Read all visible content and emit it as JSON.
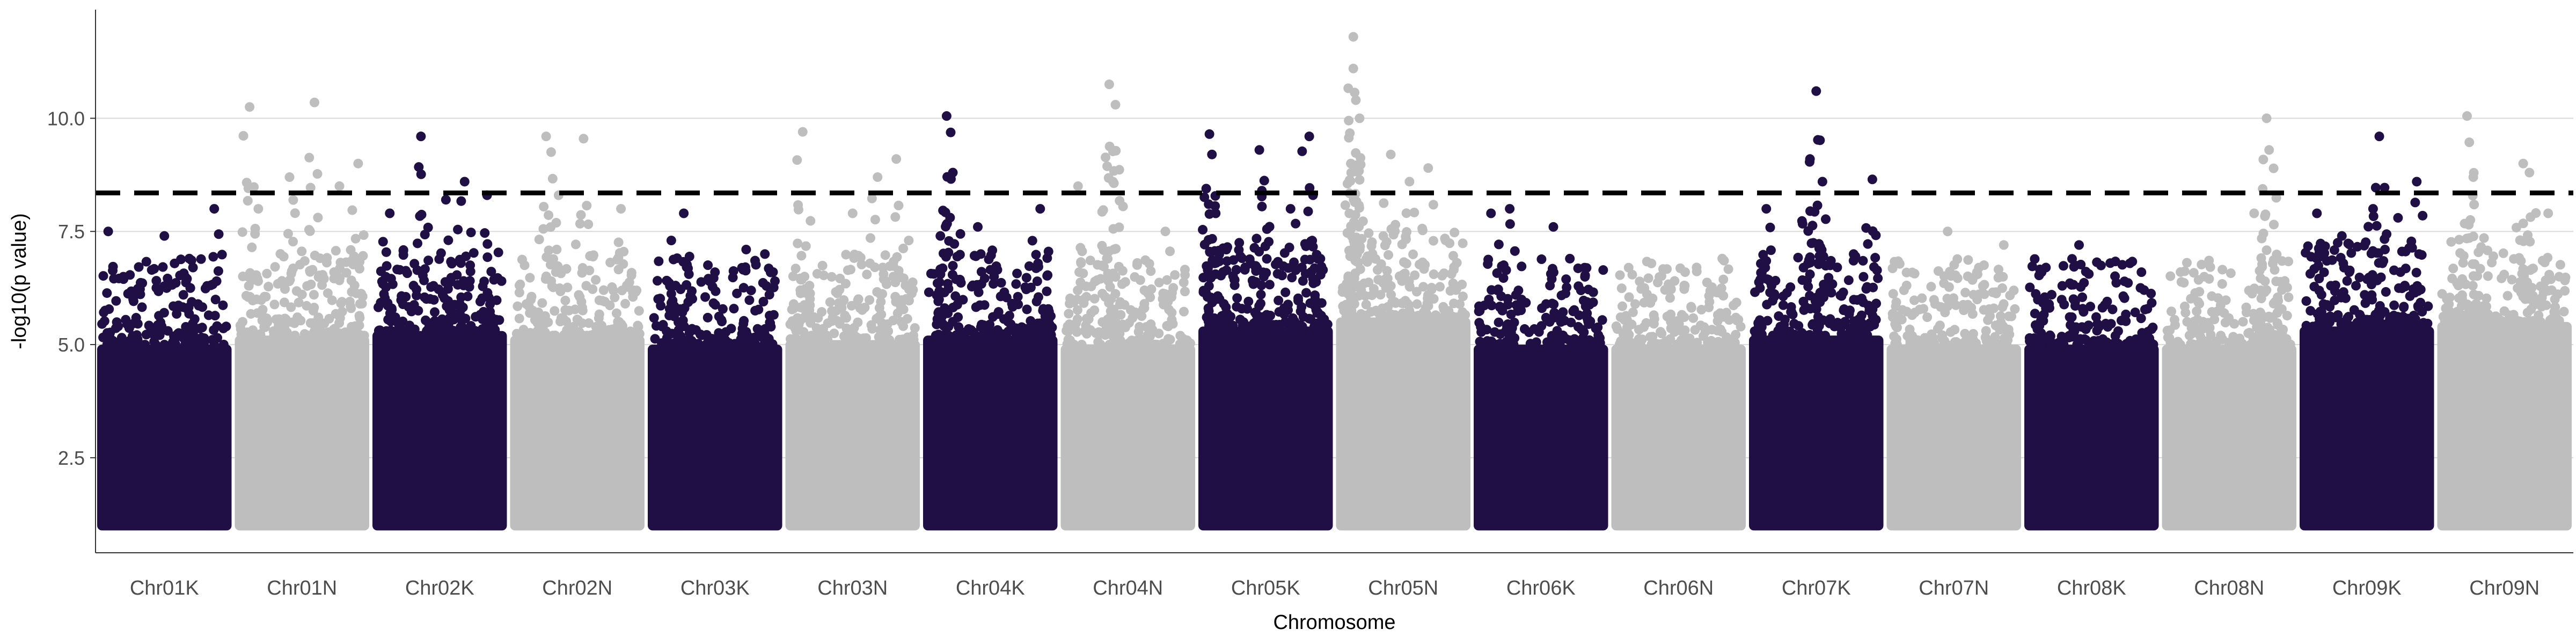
{
  "chart_data": {
    "type": "scatter",
    "title": "",
    "xlabel": "Chromosome",
    "ylabel": "-log10(p value)",
    "y_ticks": [
      2.5,
      5.0,
      7.5,
      10.0
    ],
    "y_tick_labels": [
      "2.5",
      "5.0",
      "7.5",
      "10.0"
    ],
    "ylim": [
      0.4,
      12.4
    ],
    "significance_threshold": 8.35,
    "grid": "horizontal major lines",
    "legend": "none",
    "colors": {
      "dark": "#1f0f45",
      "light": "#bebebe",
      "threshold": "#000000",
      "grid": "#d9d9d9"
    },
    "categories": [
      "Chr01K",
      "Chr01N",
      "Chr02K",
      "Chr02N",
      "Chr03K",
      "Chr03N",
      "Chr04K",
      "Chr04N",
      "Chr05K",
      "Chr05N",
      "Chr06K",
      "Chr06N",
      "Chr07K",
      "Chr07N",
      "Chr08K",
      "Chr08N",
      "Chr09K",
      "Chr09N"
    ],
    "series": [
      {
        "chrom": "Chr01K",
        "color": "dark",
        "body_top": 5.0,
        "peaks": [
          [
            0.05,
            7.5
          ],
          [
            0.25,
            6.0
          ],
          [
            0.5,
            7.4
          ],
          [
            0.7,
            6.9
          ],
          [
            0.9,
            8.0
          ]
        ]
      },
      {
        "chrom": "Chr01N",
        "color": "light",
        "body_top": 5.2,
        "peaks": [
          [
            0.08,
            10.25
          ],
          [
            0.15,
            8.0
          ],
          [
            0.4,
            8.7
          ],
          [
            0.6,
            10.35
          ],
          [
            0.8,
            8.5
          ],
          [
            0.95,
            9.0
          ]
        ]
      },
      {
        "chrom": "Chr02K",
        "color": "dark",
        "body_top": 5.3,
        "peaks": [
          [
            0.1,
            7.9
          ],
          [
            0.35,
            9.6
          ],
          [
            0.55,
            8.2
          ],
          [
            0.7,
            8.6
          ],
          [
            0.88,
            8.3
          ]
        ]
      },
      {
        "chrom": "Chr02N",
        "color": "light",
        "body_top": 5.2,
        "peaks": [
          [
            0.25,
            9.6
          ],
          [
            0.55,
            9.55
          ],
          [
            0.35,
            8.3
          ],
          [
            0.85,
            8.0
          ]
        ]
      },
      {
        "chrom": "Chr03K",
        "color": "dark",
        "body_top": 5.0,
        "peaks": [
          [
            0.15,
            7.3
          ],
          [
            0.25,
            7.9
          ],
          [
            0.5,
            6.6
          ],
          [
            0.75,
            7.1
          ],
          [
            0.9,
            7.0
          ]
        ]
      },
      {
        "chrom": "Chr03N",
        "color": "light",
        "body_top": 5.1,
        "peaks": [
          [
            0.1,
            9.7
          ],
          [
            0.5,
            7.9
          ],
          [
            0.7,
            8.7
          ],
          [
            0.85,
            9.1
          ],
          [
            0.95,
            7.3
          ]
        ]
      },
      {
        "chrom": "Chr04K",
        "color": "dark",
        "body_top": 5.2,
        "peaks": [
          [
            0.1,
            7.4
          ],
          [
            0.15,
            10.05
          ],
          [
            0.2,
            8.8
          ],
          [
            0.4,
            7.6
          ],
          [
            0.9,
            8.0
          ]
        ]
      },
      {
        "chrom": "Chr04N",
        "color": "light",
        "body_top": 5.0,
        "peaks": [
          [
            0.1,
            8.5
          ],
          [
            0.35,
            10.75
          ],
          [
            0.4,
            10.3
          ],
          [
            0.38,
            8.6
          ],
          [
            0.8,
            7.5
          ]
        ]
      },
      {
        "chrom": "Chr05K",
        "color": "dark",
        "body_top": 5.4,
        "peaks": [
          [
            0.05,
            9.65
          ],
          [
            0.07,
            9.2
          ],
          [
            0.1,
            7.9
          ],
          [
            0.45,
            9.3
          ],
          [
            0.47,
            8.4
          ],
          [
            0.7,
            8.0
          ],
          [
            0.85,
            9.6
          ],
          [
            0.88,
            8.3
          ]
        ]
      },
      {
        "chrom": "Chr05N",
        "color": "light",
        "body_top": 5.6,
        "peaks": [
          [
            0.1,
            11.8
          ],
          [
            0.1,
            11.1
          ],
          [
            0.12,
            10.4
          ],
          [
            0.15,
            10.0
          ],
          [
            0.08,
            9.0
          ],
          [
            0.4,
            9.2
          ],
          [
            0.55,
            8.6
          ],
          [
            0.7,
            8.9
          ]
        ]
      },
      {
        "chrom": "Chr06K",
        "color": "dark",
        "body_top": 5.0,
        "peaks": [
          [
            0.1,
            7.9
          ],
          [
            0.25,
            8.0
          ],
          [
            0.6,
            7.6
          ],
          [
            0.85,
            6.7
          ]
        ]
      },
      {
        "chrom": "Chr06N",
        "color": "light",
        "body_top": 5.0,
        "peaks": [
          [
            0.1,
            6.7
          ],
          [
            0.55,
            6.3
          ],
          [
            0.85,
            6.9
          ]
        ]
      },
      {
        "chrom": "Chr07K",
        "color": "dark",
        "body_top": 5.2,
        "peaks": [
          [
            0.1,
            8.0
          ],
          [
            0.5,
            10.6
          ],
          [
            0.45,
            9.1
          ],
          [
            0.55,
            8.6
          ],
          [
            0.8,
            7.0
          ],
          [
            0.95,
            8.65
          ]
        ]
      },
      {
        "chrom": "Chr07N",
        "color": "light",
        "body_top": 5.0,
        "peaks": [
          [
            0.1,
            6.2
          ],
          [
            0.45,
            7.5
          ],
          [
            0.7,
            6.7
          ],
          [
            0.9,
            7.2
          ]
        ]
      },
      {
        "chrom": "Chr08K",
        "color": "dark",
        "body_top": 5.0,
        "peaks": [
          [
            0.1,
            6.6
          ],
          [
            0.4,
            7.2
          ],
          [
            0.65,
            6.8
          ],
          [
            0.9,
            6.6
          ]
        ]
      },
      {
        "chrom": "Chr08N",
        "color": "light",
        "body_top": 5.0,
        "peaks": [
          [
            0.3,
            6.5
          ],
          [
            0.7,
            7.9
          ],
          [
            0.8,
            10.0
          ],
          [
            0.82,
            9.3
          ]
        ]
      },
      {
        "chrom": "Chr09K",
        "color": "dark",
        "body_top": 5.4,
        "peaks": [
          [
            0.1,
            7.9
          ],
          [
            0.3,
            7.4
          ],
          [
            0.55,
            8.0
          ],
          [
            0.6,
            9.6
          ],
          [
            0.75,
            7.8
          ],
          [
            0.9,
            8.6
          ]
        ]
      },
      {
        "chrom": "Chr09N",
        "color": "light",
        "body_top": 5.5,
        "peaks": [
          [
            0.2,
            10.05
          ],
          [
            0.25,
            8.7
          ],
          [
            0.65,
            9.0
          ],
          [
            0.7,
            8.8
          ],
          [
            0.85,
            7.9
          ]
        ]
      }
    ]
  }
}
